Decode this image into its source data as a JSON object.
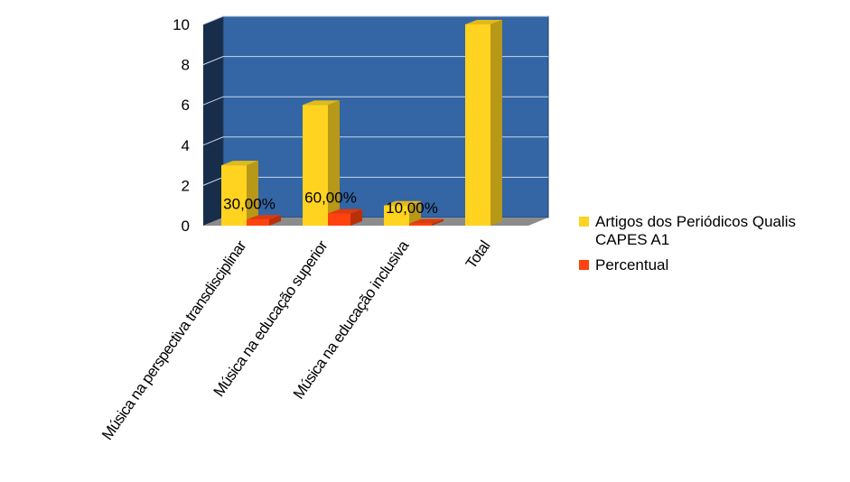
{
  "chart_data": {
    "type": "bar",
    "categories": [
      "Música na perspectiva transdisciplinar",
      "Música na educação superior",
      "Música na educação inclusiva",
      "Total"
    ],
    "series": [
      {
        "name": "Artigos dos Periódicos Qualis CAPES A1",
        "values": [
          3,
          6,
          1,
          10
        ],
        "color": "#ffd320"
      },
      {
        "name": "Percentual",
        "values": [
          0.3,
          0.6,
          0.1,
          null
        ],
        "color": "#ff420e"
      }
    ],
    "data_labels": [
      "30,00%",
      "60,00%",
      "10,00%",
      ""
    ],
    "ylim": [
      0,
      10
    ],
    "yticks": [
      0,
      2,
      4,
      6,
      8,
      10
    ],
    "grid": true,
    "legend_position": "right",
    "style": "3d",
    "wall_color": "#3465a4"
  }
}
